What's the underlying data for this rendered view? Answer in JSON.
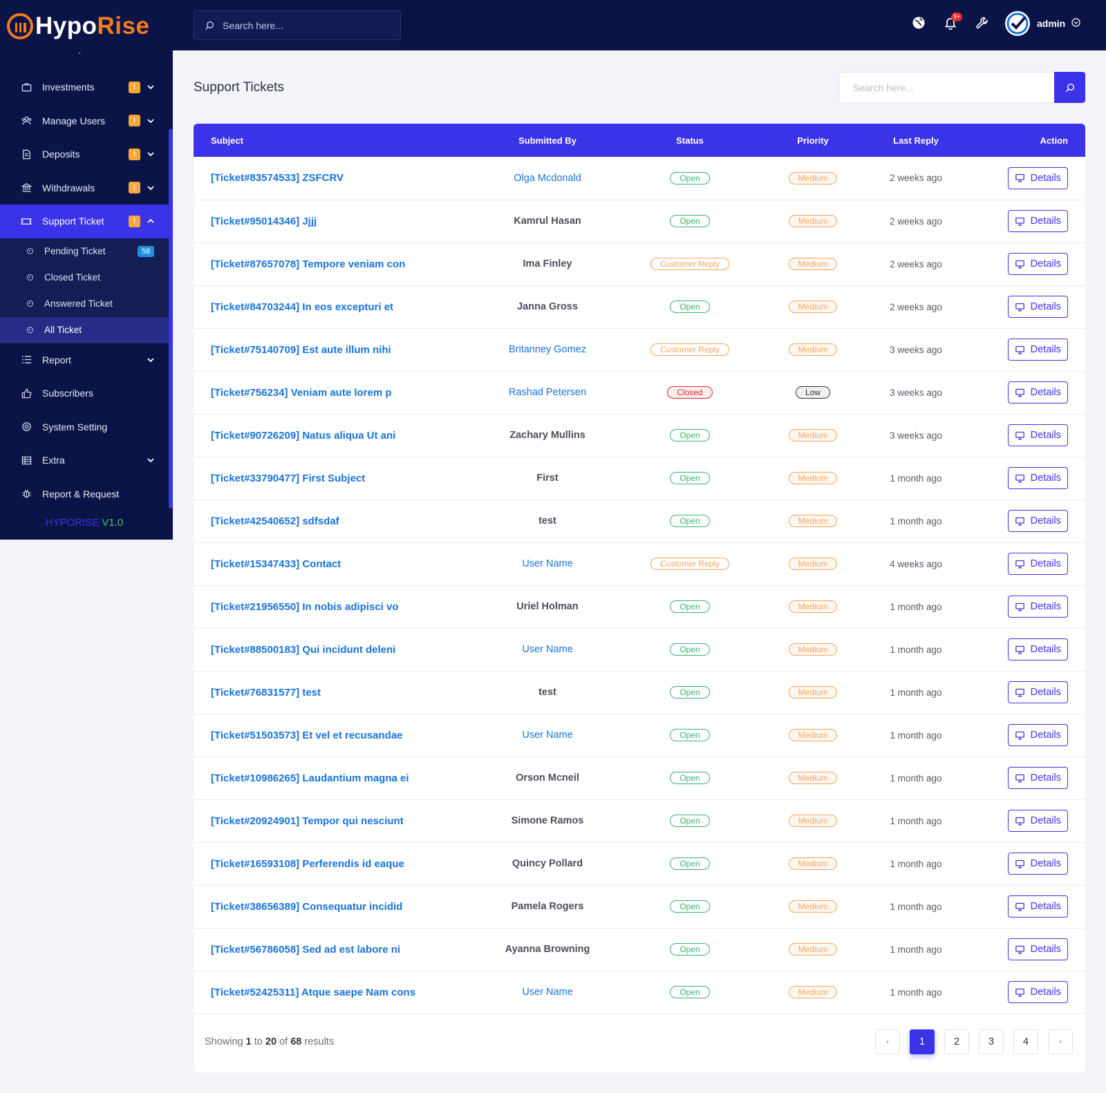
{
  "brand": {
    "name_part1": "Hypo",
    "name_part2": "Rise",
    "version_part1": "HYPORISE",
    "version_part2": "V1.0"
  },
  "sidebar": {
    "cutoff_label": "Investment Report",
    "items": [
      {
        "label": "Investments",
        "icon": "briefcase-icon",
        "warn": "!",
        "chevron": "down"
      },
      {
        "label": "Manage Users",
        "icon": "users-icon",
        "warn": "!",
        "chevron": "down"
      },
      {
        "label": "Deposits",
        "icon": "deposit-icon",
        "warn": "!",
        "chevron": "down"
      },
      {
        "label": "Withdrawals",
        "icon": "bank-icon",
        "warn": "!",
        "chevron": "down"
      },
      {
        "label": "Support Ticket",
        "icon": "ticket-icon",
        "warn": "!",
        "chevron": "up"
      }
    ],
    "sub_items": [
      {
        "label": "Pending Ticket",
        "badge": "58"
      },
      {
        "label": "Closed Ticket"
      },
      {
        "label": "Answered Ticket"
      },
      {
        "label": "All Ticket"
      }
    ],
    "items_after": [
      {
        "label": "Report",
        "icon": "list-icon",
        "chevron": "down"
      },
      {
        "label": "Subscribers",
        "icon": "thumbs-up-icon"
      },
      {
        "label": "System Setting",
        "icon": "settings-icon"
      },
      {
        "label": "Extra",
        "icon": "table-icon",
        "chevron": "down"
      },
      {
        "label": "Report & Request",
        "icon": "bug-icon"
      }
    ]
  },
  "header": {
    "search_placeholder": "Search here...",
    "notification_count": "9+",
    "admin_name": "admin"
  },
  "main": {
    "title": "Support Tickets",
    "search_placeholder": "Search here...",
    "columns": {
      "subject": "Subject",
      "submitted_by": "Submitted By",
      "status": "Status",
      "priority": "Priority",
      "last_reply": "Last Reply",
      "action": "Action"
    },
    "details_label": "Details",
    "rows": [
      {
        "subject": "[Ticket#83574533] ZSFCRV",
        "user": "Olga Mcdonald",
        "user_link": true,
        "status": "Open",
        "priority": "Medium",
        "last_reply": "2 weeks ago"
      },
      {
        "subject": "[Ticket#95014346] Jjjj",
        "user": "Kamrul Hasan",
        "user_link": false,
        "status": "Open",
        "priority": "Medium",
        "last_reply": "2 weeks ago"
      },
      {
        "subject": "[Ticket#87657078] Tempore veniam con",
        "user": "Ima Finley",
        "user_link": false,
        "status": "Customer Reply",
        "priority": "Medium",
        "last_reply": "2 weeks ago"
      },
      {
        "subject": "[Ticket#84703244] In eos excepturi et",
        "user": "Janna Gross",
        "user_link": false,
        "status": "Open",
        "priority": "Medium",
        "last_reply": "2 weeks ago"
      },
      {
        "subject": "[Ticket#75140709] Est aute illum nihi",
        "user": "Britanney Gomez",
        "user_link": true,
        "status": "Customer Reply",
        "priority": "Medium",
        "last_reply": "3 weeks ago"
      },
      {
        "subject": "[Ticket#756234] Veniam aute lorem p",
        "user": "Rashad Petersen",
        "user_link": true,
        "status": "Closed",
        "priority": "Low",
        "last_reply": "3 weeks ago"
      },
      {
        "subject": "[Ticket#90726209] Natus aliqua Ut ani",
        "user": "Zachary Mullins",
        "user_link": false,
        "status": "Open",
        "priority": "Medium",
        "last_reply": "3 weeks ago"
      },
      {
        "subject": "[Ticket#33790477] First Subject",
        "user": "First",
        "user_link": false,
        "status": "Open",
        "priority": "Medium",
        "last_reply": "1 month ago"
      },
      {
        "subject": "[Ticket#42540652] sdfsdaf",
        "user": "test",
        "user_link": false,
        "status": "Open",
        "priority": "Medium",
        "last_reply": "1 month ago"
      },
      {
        "subject": "[Ticket#15347433] Contact",
        "user": "User Name",
        "user_link": true,
        "status": "Customer Reply",
        "priority": "Medium",
        "last_reply": "4 weeks ago"
      },
      {
        "subject": "[Ticket#21956550] In nobis adipisci vo",
        "user": "Uriel Holman",
        "user_link": false,
        "status": "Open",
        "priority": "Medium",
        "last_reply": "1 month ago"
      },
      {
        "subject": "[Ticket#88500183] Qui incidunt deleni",
        "user": "User Name",
        "user_link": true,
        "status": "Open",
        "priority": "Medium",
        "last_reply": "1 month ago"
      },
      {
        "subject": "[Ticket#76831577] test",
        "user": "test",
        "user_link": false,
        "status": "Open",
        "priority": "Medium",
        "last_reply": "1 month ago"
      },
      {
        "subject": "[Ticket#51503573] Et vel et recusandae",
        "user": "User Name",
        "user_link": true,
        "status": "Open",
        "priority": "Medium",
        "last_reply": "1 month ago"
      },
      {
        "subject": "[Ticket#10986265] Laudantium magna ei",
        "user": "Orson Mcneil",
        "user_link": false,
        "status": "Open",
        "priority": "Medium",
        "last_reply": "1 month ago"
      },
      {
        "subject": "[Ticket#20924901] Tempor qui nesciunt",
        "user": "Simone Ramos",
        "user_link": false,
        "status": "Open",
        "priority": "Medium",
        "last_reply": "1 month ago"
      },
      {
        "subject": "[Ticket#16593108] Perferendis id eaque",
        "user": "Quincy Pollard",
        "user_link": false,
        "status": "Open",
        "priority": "Medium",
        "last_reply": "1 month ago"
      },
      {
        "subject": "[Ticket#38656389] Consequatur incidid",
        "user": "Pamela Rogers",
        "user_link": false,
        "status": "Open",
        "priority": "Medium",
        "last_reply": "1 month ago"
      },
      {
        "subject": "[Ticket#56786058] Sed ad est labore ni",
        "user": "Ayanna Browning",
        "user_link": false,
        "status": "Open",
        "priority": "Medium",
        "last_reply": "1 month ago"
      },
      {
        "subject": "[Ticket#52425311] Atque saepe Nam cons",
        "user": "User Name",
        "user_link": true,
        "status": "Open",
        "priority": "Medium",
        "last_reply": "1 month ago"
      }
    ],
    "pagination": {
      "showing_prefix": "Showing",
      "from": "1",
      "to_word": "to",
      "to": "20",
      "of_word": "of",
      "total": "68",
      "results_word": "results",
      "prev": "‹",
      "pages": [
        "1",
        "2",
        "3",
        "4"
      ],
      "current": "1",
      "next": "›"
    }
  },
  "colors": {
    "navy": "#0b1446",
    "accent": "#3b33e8",
    "orange": "#f47b20",
    "link": "#1773d9",
    "open": "#35b46b",
    "medium": "#f7a35c",
    "closed": "#e3262f"
  }
}
